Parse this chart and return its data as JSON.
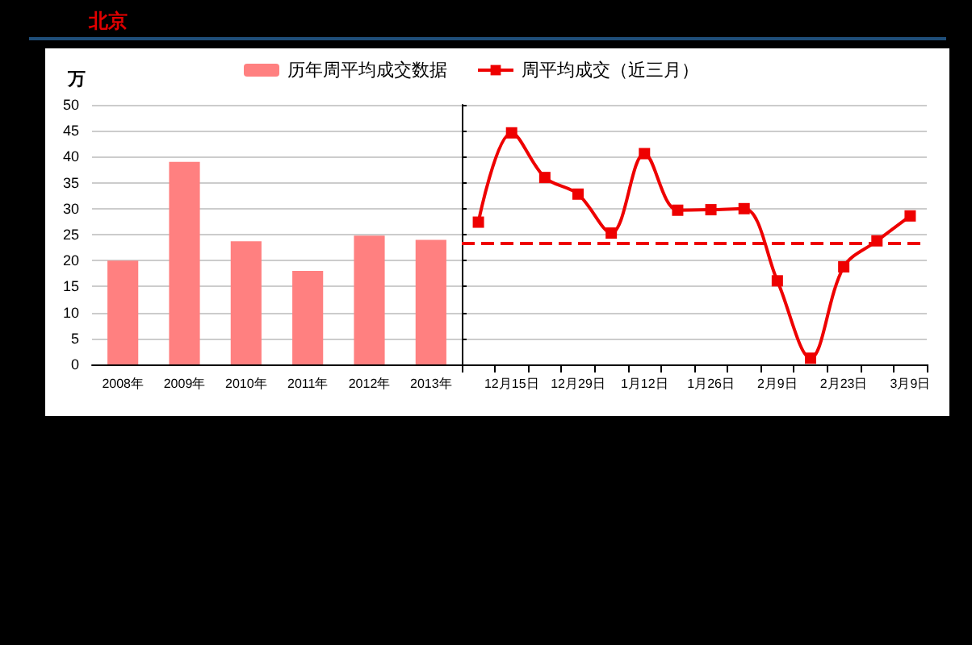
{
  "chart_data": [
    {
      "type": "bar",
      "title": "北京",
      "ylabel": "万",
      "categories": [
        "2008年",
        "2009年",
        "2010年",
        "2011年",
        "2012年",
        "2013年"
      ],
      "series": [
        {
          "name": "历年周平均成交数据",
          "color": "#ff8080",
          "values": [
            20,
            39,
            23.7,
            18,
            24.8,
            24
          ]
        }
      ],
      "ylim": [
        0,
        50
      ],
      "yticks": [
        0,
        5,
        10,
        15,
        20,
        25,
        30,
        35,
        40,
        45,
        50
      ],
      "grid": "y",
      "legend": "top right"
    },
    {
      "type": "line",
      "categories": [
        null,
        "12月15日",
        null,
        "12月29日",
        null,
        "1月12日",
        null,
        "1月26日",
        null,
        "2月9日",
        null,
        "2月23日",
        null,
        "3月9日"
      ],
      "series": [
        {
          "name": "周平均成交（近三月）",
          "color": "#ee0000",
          "values": [
            27.4,
            44.6,
            36.0,
            32.8,
            25.3,
            40.6,
            29.7,
            29.8,
            30.0,
            16.1,
            1.2,
            18.8,
            23.8,
            28.6
          ]
        }
      ],
      "ylim": [
        0,
        50
      ],
      "yticks": [
        0,
        5,
        10,
        15,
        20,
        25,
        30,
        35,
        40,
        45,
        50
      ],
      "tick_labels": "x",
      "grid": "y",
      "legend": "top left",
      "marker": "square",
      "line_style": "solid",
      "ref_lines": [
        {
          "axis": "y",
          "value": 23.3,
          "color": "#ee0000",
          "line_style": "dashed"
        }
      ]
    }
  ]
}
